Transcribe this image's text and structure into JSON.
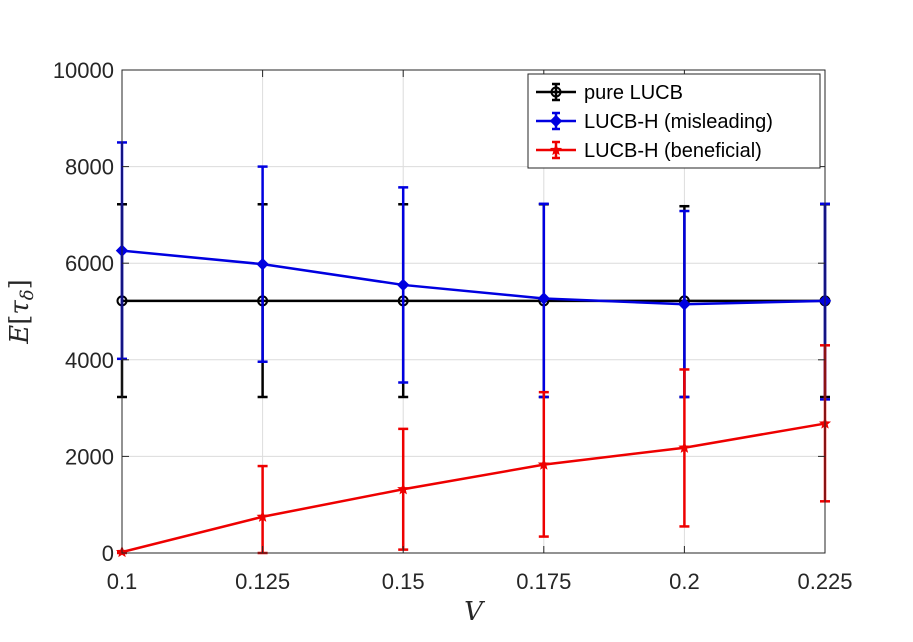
{
  "chart_data": {
    "type": "line",
    "x": [
      0.1,
      0.125,
      0.15,
      0.175,
      0.2,
      0.225
    ],
    "x_tick_labels": [
      "0.1",
      "0.125",
      "0.15",
      "0.175",
      "0.2",
      "0.225"
    ],
    "y_ticks": [
      0,
      2000,
      4000,
      6000,
      8000,
      10000
    ],
    "y_tick_labels": [
      "0",
      "2000",
      "4000",
      "6000",
      "8000",
      "10000"
    ],
    "xlim": [
      0.1,
      0.225
    ],
    "ylim": [
      0,
      10000
    ],
    "xlabel": "V",
    "ylabel_base": "E",
    "ylabel_open": "[",
    "ylabel_sym": "τ",
    "ylabel_sub": "δ",
    "ylabel_close": "]",
    "grid": true,
    "legend_position": "top-right",
    "series": [
      {
        "name": "pure LUCB",
        "color": "#000000",
        "marker": "circle",
        "values": [
          5220,
          5220,
          5220,
          5220,
          5220,
          5220
        ],
        "err_low": [
          3230,
          3230,
          3230,
          3230,
          3230,
          3230
        ],
        "err_high": [
          7220,
          7220,
          7220,
          7220,
          7180,
          7220
        ]
      },
      {
        "name": "LUCB-H (misleading)",
        "color": "#0000e0",
        "marker": "diamond",
        "values": [
          6260,
          5980,
          5550,
          5270,
          5150,
          5220
        ],
        "err_low": [
          4020,
          3960,
          3530,
          3230,
          3230,
          3180
        ],
        "err_high": [
          8500,
          8000,
          7570,
          7230,
          7080,
          7230
        ]
      },
      {
        "name": "LUCB-H (beneficial)",
        "color": "#ee0000",
        "marker": "star",
        "values": [
          20,
          750,
          1320,
          1830,
          2180,
          2680
        ],
        "err_low": [
          0,
          0,
          70,
          340,
          550,
          1070
        ],
        "err_high": [
          20,
          1800,
          2570,
          3330,
          3800,
          4300
        ]
      }
    ]
  }
}
